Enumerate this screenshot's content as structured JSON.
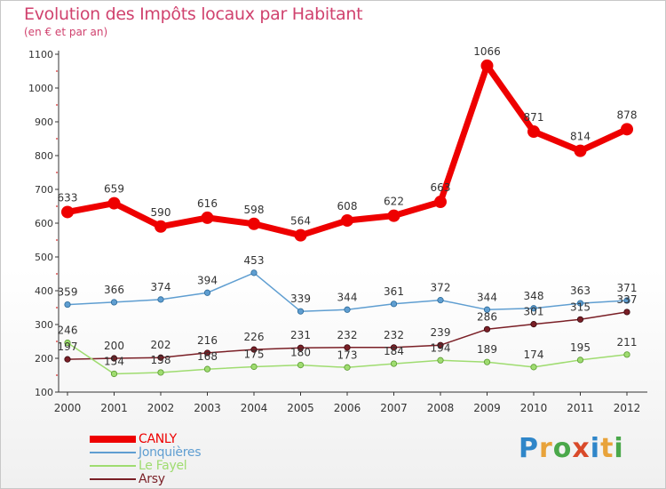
{
  "title": "Evolution des Impôts locaux par Habitant",
  "subtitle": "(en € et par an)",
  "brand": {
    "letters": [
      "P",
      "r",
      "o",
      "x",
      "i",
      "t",
      "i"
    ],
    "colors": [
      "#2f86c9",
      "#e8a33a",
      "#4aa84a",
      "#d94a2a",
      "#2f86c9",
      "#e8a33a",
      "#4aa84a"
    ]
  },
  "chart_data": {
    "type": "line",
    "x": [
      2000,
      2001,
      2002,
      2003,
      2004,
      2005,
      2006,
      2007,
      2008,
      2009,
      2010,
      2011,
      2012
    ],
    "ylim": [
      100,
      1100
    ],
    "yticks": [
      100,
      200,
      300,
      400,
      500,
      600,
      700,
      800,
      900,
      1000,
      1100
    ],
    "grid": false,
    "legend_position": "bottom-left",
    "series": [
      {
        "name": "CANLY",
        "color": "#ee0000",
        "values": [
          633,
          659,
          590,
          616,
          598,
          564,
          608,
          622,
          663,
          1066,
          871,
          814,
          878
        ],
        "labels": [
          "633",
          "659",
          "590",
          "616",
          "598",
          "564",
          "608",
          "622",
          "663",
          "1066",
          "871",
          "814",
          "878"
        ]
      },
      {
        "name": "Jonquières",
        "color": "#5f9ed1",
        "values": [
          359,
          366,
          374,
          394,
          453,
          339,
          344,
          361,
          372,
          344,
          348,
          363,
          371
        ],
        "labels": [
          "359",
          "366",
          "374",
          "394",
          "453",
          "339",
          "344",
          "361",
          "372",
          "344",
          "348",
          "363",
          "371"
        ]
      },
      {
        "name": "Le Fayel",
        "color": "#9fdc70",
        "values": [
          246,
          154,
          158,
          168,
          175,
          180,
          173,
          184,
          194,
          189,
          174,
          195,
          211
        ],
        "labels": [
          "246",
          "154",
          "158",
          "168",
          "175",
          "180",
          "173",
          "184",
          "194",
          "189",
          "174",
          "195",
          "211"
        ]
      },
      {
        "name": "Arsy",
        "color": "#7a1f26",
        "values": [
          197,
          200,
          202,
          216,
          226,
          231,
          232,
          232,
          239,
          286,
          301,
          315,
          337
        ],
        "labels": [
          "197",
          "200",
          "202",
          "216",
          "226",
          "231",
          "232",
          "232",
          "239",
          "286",
          "301",
          "315",
          "337"
        ]
      }
    ]
  }
}
